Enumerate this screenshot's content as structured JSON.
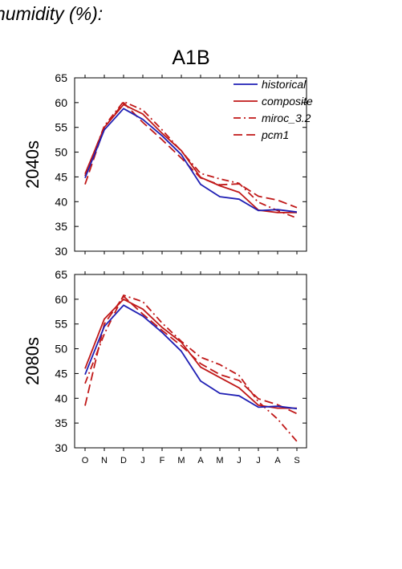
{
  "header": {
    "text": "humidity (%):"
  },
  "chart_data": {
    "type": "line",
    "title": "A1B",
    "categories": [
      "O",
      "N",
      "D",
      "J",
      "F",
      "M",
      "A",
      "M",
      "J",
      "J",
      "A",
      "S"
    ],
    "ylim": [
      30,
      65
    ],
    "yticks": [
      30,
      35,
      40,
      45,
      50,
      55,
      60,
      65
    ],
    "legend": {
      "placement": "top-right",
      "entries": [
        "historical",
        "composite",
        "miroc_3.2",
        "pcm1"
      ]
    },
    "colors": {
      "historical": "#1f1fb4",
      "scenario": "#c01818"
    },
    "panels": [
      {
        "label": "2040s",
        "series": [
          {
            "name": "historical",
            "values": [
              44.8,
              54.5,
              58.8,
              56.6,
              53.3,
              49.5,
              43.5,
              41.0,
              40.5,
              38.2,
              38.4,
              37.9
            ]
          },
          {
            "name": "composite",
            "values": [
              45.6,
              55.0,
              59.6,
              57.7,
              53.8,
              50.3,
              44.9,
              43.2,
              41.9,
              38.3,
              37.8,
              37.8
            ]
          },
          {
            "name": "miroc_3.2",
            "values": [
              45.2,
              55.3,
              60.2,
              58.5,
              54.5,
              50.2,
              45.7,
              44.6,
              43.7,
              39.9,
              38.2,
              36.7
            ]
          },
          {
            "name": "pcm1",
            "values": [
              43.5,
              54.9,
              60.0,
              56.0,
              52.5,
              48.8,
              44.8,
              43.4,
              43.6,
              41.1,
              40.3,
              38.8
            ]
          }
        ]
      },
      {
        "label": "2080s",
        "series": [
          {
            "name": "historical",
            "values": [
              44.8,
              54.5,
              58.8,
              56.6,
              53.3,
              49.5,
              43.5,
              41.0,
              40.5,
              38.2,
              38.4,
              37.9
            ]
          },
          {
            "name": "composite",
            "values": [
              46.0,
              56.0,
              60.0,
              58.0,
              54.3,
              51.3,
              46.3,
              44.2,
              42.1,
              38.6,
              38.0,
              38.0
            ]
          },
          {
            "name": "miroc_3.2",
            "values": [
              43.0,
              53.0,
              60.8,
              59.5,
              55.2,
              51.5,
              48.3,
              46.8,
              44.6,
              39.3,
              35.8,
              31.3
            ]
          },
          {
            "name": "pcm1",
            "values": [
              38.5,
              55.0,
              60.6,
              57.0,
              53.7,
              50.6,
              47.0,
              44.8,
              43.6,
              39.9,
              38.7,
              36.9
            ]
          }
        ]
      }
    ]
  }
}
